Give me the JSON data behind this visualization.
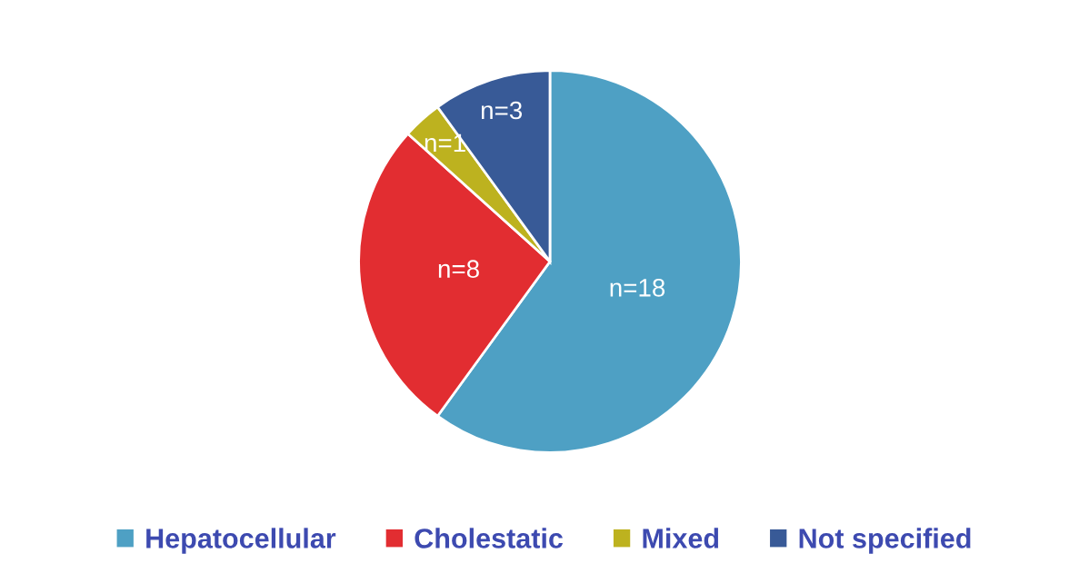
{
  "chart_data": {
    "type": "pie",
    "categories": [
      "Hepatocellular",
      "Cholestatic",
      "Mixed",
      "Not specified"
    ],
    "values": [
      18,
      8,
      1,
      3
    ],
    "colors": [
      "#4ea0c4",
      "#e22d31",
      "#bdb21f",
      "#385a97"
    ],
    "value_labels": [
      "n=18",
      "n=8",
      "n=1",
      "n=3"
    ],
    "legend": "bottom"
  }
}
